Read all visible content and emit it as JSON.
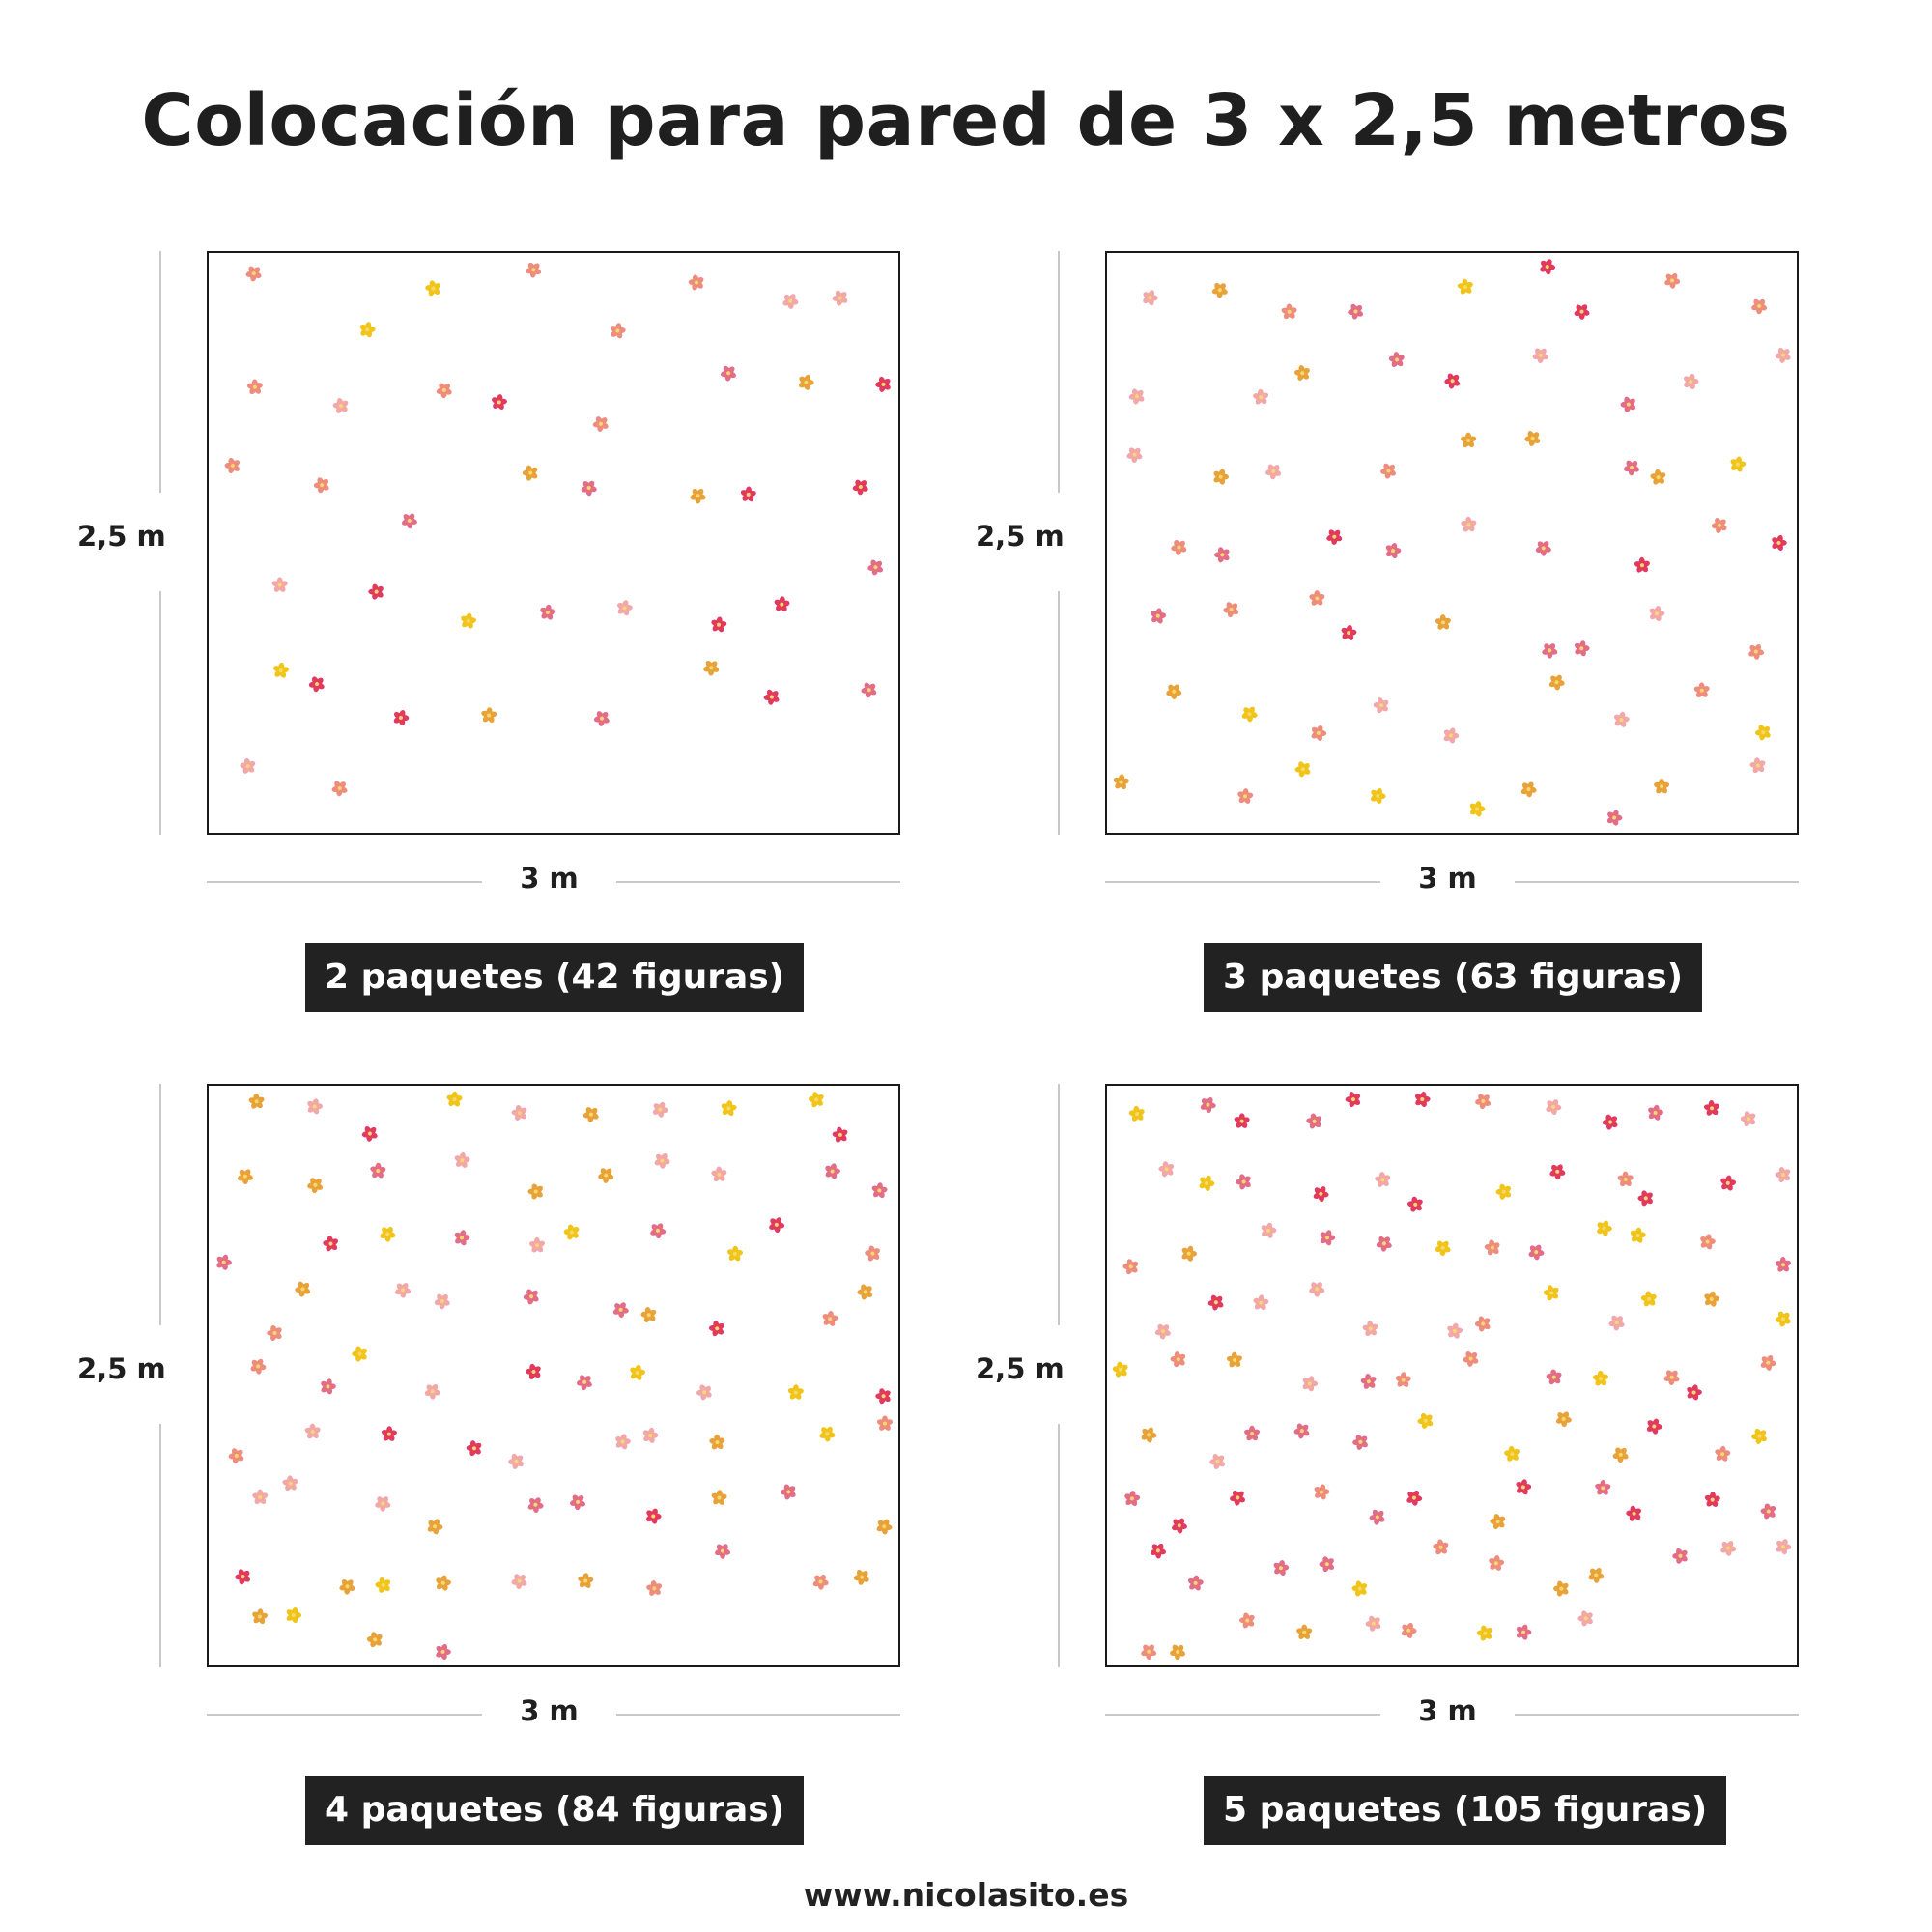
{
  "title": "Colocación para pared de 3 x 2,5 metros",
  "panels": [
    {
      "id": "p2",
      "height_label": "2,5 m",
      "width_label": "3 m",
      "caption": "2 paquetes (42 figuras)",
      "figure_count": 42
    },
    {
      "id": "p3",
      "height_label": "2,5 m",
      "width_label": "3 m",
      "caption": "3 paquetes (63 figuras)",
      "figure_count": 63
    },
    {
      "id": "p4",
      "height_label": "2,5 m",
      "width_label": "3 m",
      "caption": "4 paquetes (84 figuras)",
      "figure_count": 84
    },
    {
      "id": "p5",
      "height_label": "2,5 m",
      "width_label": "3 m",
      "caption": "5 paquetes (105 figuras)",
      "figure_count": 105
    }
  ],
  "flower_colors": [
    "#f0c419",
    "#e8a23a",
    "#e23a5e",
    "#e36d86",
    "#f2a7a8",
    "#ee8c7d"
  ],
  "footer": "www.nicolasito.es"
}
